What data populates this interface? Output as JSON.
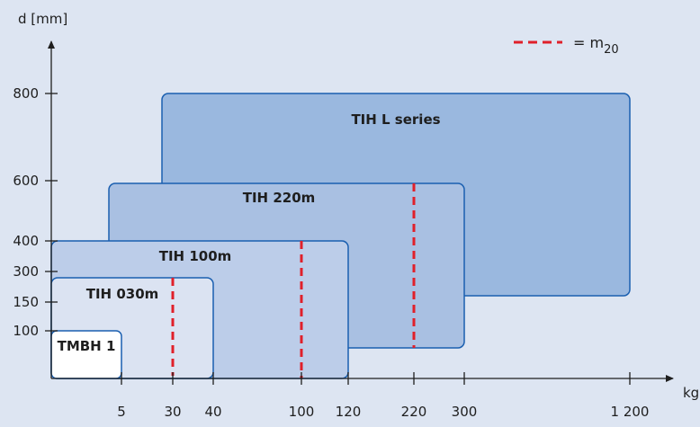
{
  "colors": {
    "background": "#dde5f2",
    "axis": "#1e1e1e",
    "box_stroke": "#1a5fb0",
    "tih_l": "#9ab8df",
    "tih_220": "#a9c0e2",
    "tih_100": "#bccde9",
    "tih_030": "#dbe3f2",
    "tmbh": "#ffffff",
    "m20_line": "#e0202a"
  },
  "axes": {
    "y_title": "d [mm]",
    "x_title": "kg",
    "y_ticks": [
      "100",
      "150",
      "300",
      "400",
      "600",
      "800"
    ],
    "x_ticks": [
      "5",
      "30",
      "40",
      "100",
      "120",
      "220",
      "300",
      "1 200"
    ]
  },
  "legend": {
    "symbol": "dashed-red-line",
    "eq": "= m",
    "sub": "20"
  },
  "boxes": [
    {
      "label": "TIH L series",
      "fill_key": "tih_l"
    },
    {
      "label": "TIH 220m",
      "fill_key": "tih_220"
    },
    {
      "label": "TIH 100m",
      "fill_key": "tih_100"
    },
    {
      "label": "TIH 030m",
      "fill_key": "tih_030"
    },
    {
      "label": "TMBH 1",
      "fill_key": "tmbh"
    }
  ],
  "m20_markers": [
    "30",
    "100",
    "220"
  ]
}
